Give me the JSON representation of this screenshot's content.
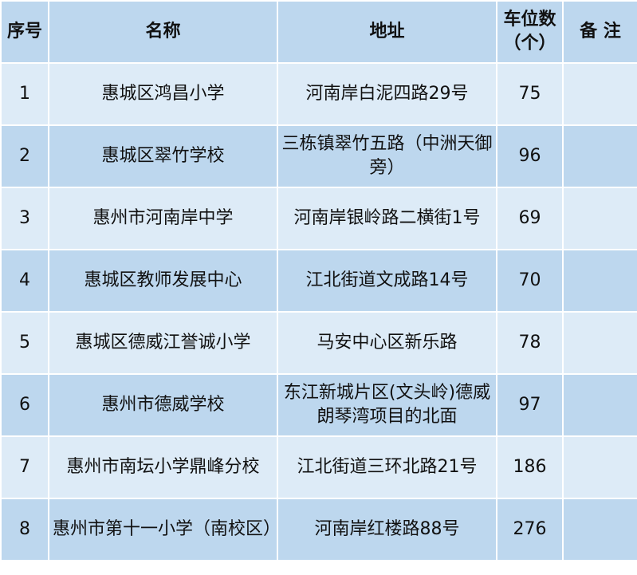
{
  "headers": {
    "index": "序号",
    "name": "名称",
    "address": "地址",
    "spaces": "车位数（个）",
    "remarks": "备 注"
  },
  "colors": {
    "header": "#bdd7ee",
    "row_light": "#ddebf7",
    "row_dark": "#bdd7ee"
  },
  "rows": [
    {
      "index": "1",
      "name": "惠城区鸿昌小学",
      "address": "河南岸白泥四路29号",
      "spaces": "75",
      "remarks": ""
    },
    {
      "index": "2",
      "name": "惠城区翠竹学校",
      "address": "三栋镇翠竹五路（中洲天御旁）",
      "spaces": "96",
      "remarks": ""
    },
    {
      "index": "3",
      "name": "惠州市河南岸中学",
      "address": "河南岸银岭路二横街1号",
      "spaces": "69",
      "remarks": ""
    },
    {
      "index": "4",
      "name": "惠城区教师发展中心",
      "address": "江北街道文成路14号",
      "spaces": "70",
      "remarks": ""
    },
    {
      "index": "5",
      "name": "惠城区德威江誉诚小学",
      "address": "马安中心区新乐路",
      "spaces": "78",
      "remarks": ""
    },
    {
      "index": "6",
      "name": "惠州市德威学校",
      "address": "东江新城片区(文头岭)德威朗琴湾项目的北面",
      "spaces": "97",
      "remarks": ""
    },
    {
      "index": "7",
      "name": "惠州市南坛小学鼎峰分校",
      "address": "江北街道三环北路21号",
      "spaces": "186",
      "remarks": ""
    },
    {
      "index": "8",
      "name": "惠州市第十一小学（南校区）",
      "address": "河南岸红楼路88号",
      "spaces": "276",
      "remarks": ""
    }
  ]
}
